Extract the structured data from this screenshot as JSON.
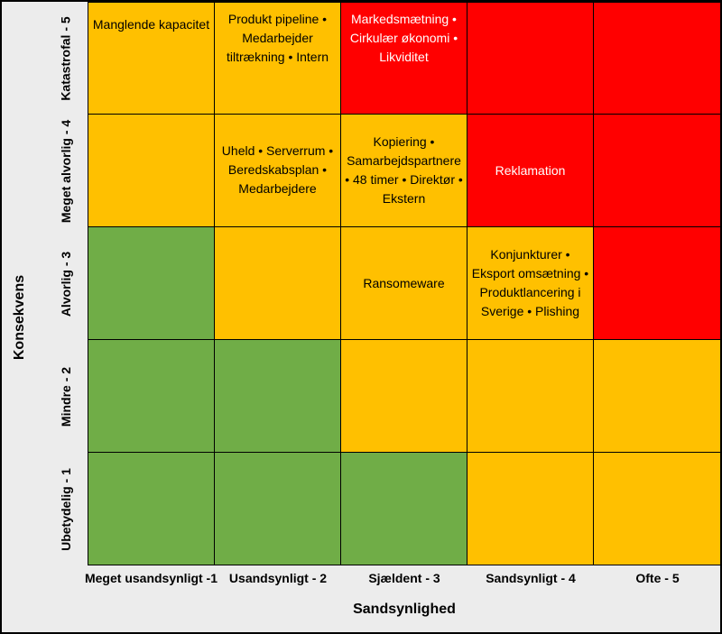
{
  "axis": {
    "y_title": "Konsekvens",
    "x_title": "Sandsynlighed"
  },
  "rows": [
    "Katastrofal - 5",
    "Meget alvorlig - 4",
    "Alvorlig - 3",
    "Mindre - 2",
    "Ubetydelig - 1"
  ],
  "columns": [
    "Meget usandsynligt -1",
    "Usandsynligt - 2",
    "Sjældent - 3",
    "Sandsynligt - 4",
    "Ofte - 5"
  ],
  "colors": {
    "green": "#70ad47",
    "amber": "#ffc000",
    "red": "#ff0000"
  },
  "cells": [
    [
      {
        "color": "#ffc000",
        "text": "Manglende kapacitet",
        "text_color": "#000000"
      },
      {
        "color": "#ffc000",
        "text": "Produkt pipeline • Medarbejder tiltrækning • Intern",
        "text_color": "#000000"
      },
      {
        "color": "#ff0000",
        "text": "Markedsmætning • Cirkulær økonomi • Likviditet",
        "text_color": "#ffffff"
      },
      {
        "color": "#ff0000",
        "text": "",
        "text_color": "#ffffff"
      },
      {
        "color": "#ff0000",
        "text": "",
        "text_color": "#ffffff"
      }
    ],
    [
      {
        "color": "#ffc000",
        "text": "",
        "text_color": "#000000"
      },
      {
        "color": "#ffc000",
        "text": "Uheld • Serverrum • Beredskabsplan • Medarbejdere",
        "text_color": "#000000"
      },
      {
        "color": "#ffc000",
        "text": "Kopiering • Samarbejdspartnere • 48 timer • Direktør • Ekstern",
        "text_color": "#000000"
      },
      {
        "color": "#ff0000",
        "text": "Reklamation",
        "text_color": "#ffffff"
      },
      {
        "color": "#ff0000",
        "text": "",
        "text_color": "#ffffff"
      }
    ],
    [
      {
        "color": "#70ad47",
        "text": "",
        "text_color": "#000000"
      },
      {
        "color": "#ffc000",
        "text": "",
        "text_color": "#000000"
      },
      {
        "color": "#ffc000",
        "text": "Ransomeware",
        "text_color": "#000000"
      },
      {
        "color": "#ffc000",
        "text": "Konjunkturer • Eksport omsætning • Produktlancering i Sverige • Plishing",
        "text_color": "#000000"
      },
      {
        "color": "#ff0000",
        "text": "",
        "text_color": "#ffffff"
      }
    ],
    [
      {
        "color": "#70ad47",
        "text": "",
        "text_color": "#000000"
      },
      {
        "color": "#70ad47",
        "text": "",
        "text_color": "#000000"
      },
      {
        "color": "#ffc000",
        "text": "",
        "text_color": "#000000"
      },
      {
        "color": "#ffc000",
        "text": "",
        "text_color": "#000000"
      },
      {
        "color": "#ffc000",
        "text": "",
        "text_color": "#000000"
      }
    ],
    [
      {
        "color": "#70ad47",
        "text": "",
        "text_color": "#000000"
      },
      {
        "color": "#70ad47",
        "text": "",
        "text_color": "#000000"
      },
      {
        "color": "#70ad47",
        "text": "",
        "text_color": "#000000"
      },
      {
        "color": "#ffc000",
        "text": "",
        "text_color": "#000000"
      },
      {
        "color": "#ffc000",
        "text": "",
        "text_color": "#000000"
      }
    ]
  ]
}
